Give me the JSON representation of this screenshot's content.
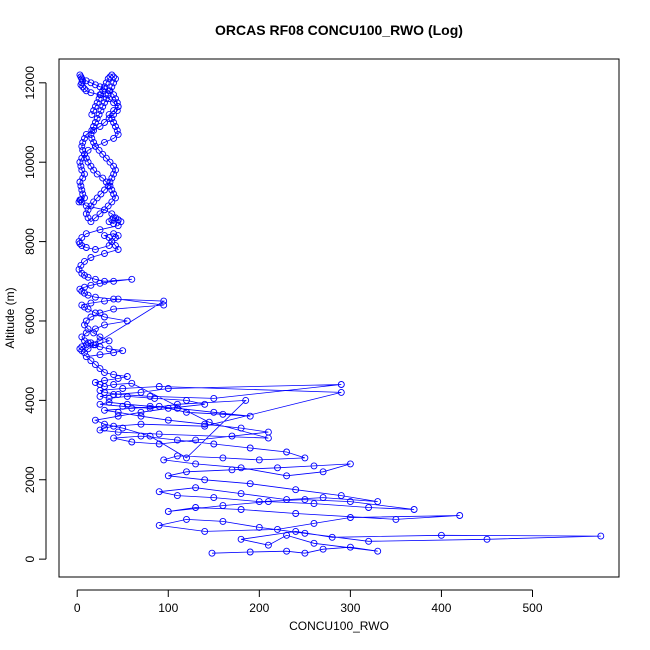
{
  "chart_data": {
    "type": "scatter",
    "title": "ORCAS RF08 CONCU100_RWO (Log)",
    "xlabel": "CONCU100_RWO",
    "ylabel": "Altitude (m)",
    "xlim": [
      -20,
      595
    ],
    "ylim": [
      -450,
      12600
    ],
    "xticks": [
      0,
      100,
      200,
      300,
      400,
      500
    ],
    "xtick_labels": [
      "0",
      "100",
      "200",
      "300",
      "400",
      "500"
    ],
    "yticks": [
      0,
      2000,
      4000,
      6000,
      8000,
      10000,
      12000
    ],
    "ytick_labels": [
      "0",
      "2000",
      "4000",
      "6000",
      "8000",
      "10000",
      "12000"
    ],
    "marker": "open-circle",
    "connected": true,
    "grid": false,
    "legend": "none",
    "colors": {
      "series": "#0000ff",
      "axes": "#000000"
    },
    "series": [
      {
        "x": [
          148,
          190,
          230,
          250,
          270,
          300,
          330,
          260,
          230,
          210,
          180,
          240,
          280,
          400,
          575,
          450,
          320,
          250,
          200,
          160,
          120,
          90,
          140,
          220,
          260,
          300,
          420,
          350,
          240,
          180,
          130,
          100,
          160,
          210,
          260,
          320,
          370,
          300,
          250,
          200,
          150,
          110,
          90,
          130,
          180,
          230,
          270,
          330,
          290,
          240,
          190,
          140,
          100,
          120,
          170,
          220,
          260,
          300,
          270,
          230,
          180,
          130,
          95,
          110,
          160,
          200,
          250,
          230,
          190,
          150,
          110,
          70,
          40,
          60,
          90,
          130,
          170,
          210,
          180,
          140,
          100,
          70,
          45,
          30,
          60,
          90,
          120,
          160,
          190,
          150,
          110,
          80,
          55,
          35,
          25,
          50,
          80,
          110,
          185,
          120,
          80,
          50,
          30,
          20,
          45,
          70,
          100,
          140,
          120,
          85,
          55,
          35,
          25,
          40,
          70,
          100,
          290,
          150,
          80,
          45,
          30,
          25,
          50,
          90,
          290,
          140,
          70,
          40,
          30,
          25,
          45,
          90,
          210,
          145,
          60,
          40,
          30,
          25,
          20,
          30,
          45,
          55,
          40,
          30,
          25,
          20,
          15,
          10,
          25,
          40,
          50,
          35,
          25,
          18,
          12,
          8,
          5,
          10,
          20,
          30,
          55,
          30,
          20,
          12,
          8,
          5,
          15,
          30,
          45,
          95,
          40,
          25,
          15,
          10,
          8,
          12,
          18,
          25,
          35,
          20,
          12,
          8,
          5,
          3,
          5,
          10,
          15,
          25,
          95,
          40,
          20,
          12,
          8,
          5,
          3,
          8,
          15,
          25,
          40,
          60,
          30,
          20,
          12,
          8,
          5,
          2,
          4,
          8,
          15,
          30,
          45,
          42,
          38,
          35,
          30,
          40,
          45,
          42,
          38,
          35,
          20,
          10,
          5,
          3,
          2,
          5,
          10,
          25,
          45,
          48,
          45,
          40,
          38,
          35,
          40,
          45,
          42,
          38,
          30,
          10,
          5,
          3,
          2,
          4,
          8,
          6,
          5,
          4,
          3,
          6,
          8,
          5,
          4,
          3,
          5,
          8,
          12,
          20,
          30,
          40,
          45,
          44,
          42,
          40,
          38,
          35,
          40,
          45,
          44,
          42,
          40,
          35,
          30,
          25,
          20,
          15,
          10,
          5,
          4,
          3,
          4,
          5,
          6,
          5,
          4,
          6,
          8,
          10,
          15,
          25,
          35,
          40,
          45,
          44,
          40,
          35,
          30,
          25,
          18,
          10,
          8,
          6,
          5,
          6,
          8,
          10,
          12,
          15,
          18,
          22,
          28,
          32,
          36,
          38,
          40,
          42,
          38,
          34,
          30,
          25,
          20,
          15,
          12,
          10,
          12,
          15,
          18,
          22,
          26,
          30,
          34,
          36,
          38,
          40,
          42,
          40,
          36,
          32,
          28,
          24,
          20,
          18,
          16,
          15,
          16,
          18,
          20,
          22,
          24,
          26,
          28,
          30,
          32,
          34,
          36,
          38,
          40,
          42,
          40,
          38,
          36,
          34,
          32,
          30,
          28,
          26,
          24,
          22,
          20,
          18,
          16
        ],
        "y": [
          150,
          180,
          200,
          150,
          250,
          300,
          200,
          400,
          600,
          350,
          500,
          700,
          550,
          600,
          580,
          500,
          450,
          650,
          800,
          950,
          1000,
          850,
          700,
          750,
          900,
          1050,
          1100,
          1000,
          1150,
          1250,
          1300,
          1200,
          1350,
          1450,
          1400,
          1300,
          1250,
          1450,
          1500,
          1450,
          1550,
          1600,
          1700,
          1800,
          1650,
          1500,
          1550,
          1450,
          1600,
          1750,
          1900,
          2000,
          2100,
          2200,
          2250,
          2300,
          2350,
          2400,
          2200,
          2100,
          2300,
          2400,
          2500,
          2600,
          2550,
          2500,
          2550,
          2700,
          2800,
          2900,
          3000,
          3100,
          3050,
          2950,
          2900,
          3000,
          3100,
          3200,
          3300,
          3400,
          3500,
          3600,
          3700,
          3750,
          3800,
          3850,
          3700,
          3650,
          3600,
          3700,
          3800,
          3850,
          3900,
          3950,
          3900,
          3850,
          3800,
          3900,
          4000,
          2550,
          3100,
          3300,
          3400,
          3500,
          3600,
          3700,
          3800,
          3900,
          4000,
          4050,
          4100,
          4050,
          4100,
          4150,
          4200,
          4300,
          4400,
          4050,
          4100,
          4150,
          4200,
          4250,
          4300,
          4350,
          4200,
          3350,
          3400,
          3350,
          3300,
          3250,
          3200,
          3150,
          3050,
          3450,
          4430,
          4400,
          4350,
          4400,
          4450,
          4500,
          4550,
          4600,
          4650,
          4700,
          4800,
          4900,
          5000,
          5100,
          5150,
          5200,
          5250,
          5300,
          5350,
          5400,
          5450,
          5500,
          5600,
          5700,
          5800,
          5900,
          6000,
          6100,
          6200,
          6300,
          6350,
          6400,
          6450,
          6500,
          6550,
          6400,
          6300,
          6200,
          6100,
          6000,
          5900,
          5800,
          5700,
          5600,
          5500,
          5400,
          5300,
          5200,
          5250,
          5300,
          5350,
          5400,
          5450,
          5500,
          6500,
          6550,
          6600,
          6650,
          6700,
          6750,
          6800,
          6850,
          6900,
          6950,
          7000,
          7050,
          7000,
          7050,
          7100,
          7150,
          7200,
          7300,
          7400,
          7500,
          7600,
          7700,
          7800,
          7900,
          8000,
          8100,
          8150,
          8200,
          8150,
          8100,
          8000,
          7900,
          7800,
          7850,
          7900,
          7950,
          8000,
          8100,
          8200,
          8300,
          8400,
          8500,
          8550,
          8600,
          8550,
          8500,
          8450,
          8550,
          8600,
          8700,
          8800,
          8900,
          9000,
          9050,
          9000,
          9050,
          9100,
          9200,
          9300,
          9400,
          9500,
          9600,
          9700,
          9800,
          9900,
          10000,
          10100,
          10200,
          10300,
          10400,
          10500,
          10600,
          10700,
          10800,
          10900,
          11000,
          11100,
          11200,
          11300,
          11400,
          11500,
          11600,
          11700,
          11800,
          11850,
          11900,
          11950,
          12000,
          12050,
          12100,
          12150,
          12200,
          12150,
          12100,
          12050,
          12000,
          11950,
          11900,
          11850,
          11800,
          11750,
          11700,
          11600,
          11500,
          11400,
          11300,
          11200,
          11100,
          11000,
          10900,
          10800,
          10700,
          10600,
          10500,
          10400,
          10300,
          10200,
          10100,
          10000,
          9900,
          9800,
          9700,
          9600,
          9500,
          9400,
          9300,
          9200,
          9100,
          9000,
          8900,
          8800,
          8700,
          8600,
          8500,
          8600,
          8700,
          8800,
          8900,
          9000,
          9100,
          9200,
          9300,
          9400,
          9500,
          9600,
          9700,
          9800,
          9900,
          10000,
          10100,
          10200,
          10300,
          10400,
          10500,
          10600,
          10700,
          10800,
          10900,
          11000,
          11100,
          11200,
          11300,
          11400,
          11500,
          11600,
          11700,
          11800,
          11900,
          12000,
          12100,
          12150,
          12200,
          12150,
          12100,
          12000,
          11900,
          11800,
          11700,
          11600,
          11500,
          11400,
          11300,
          11200
        ]
      }
    ]
  }
}
